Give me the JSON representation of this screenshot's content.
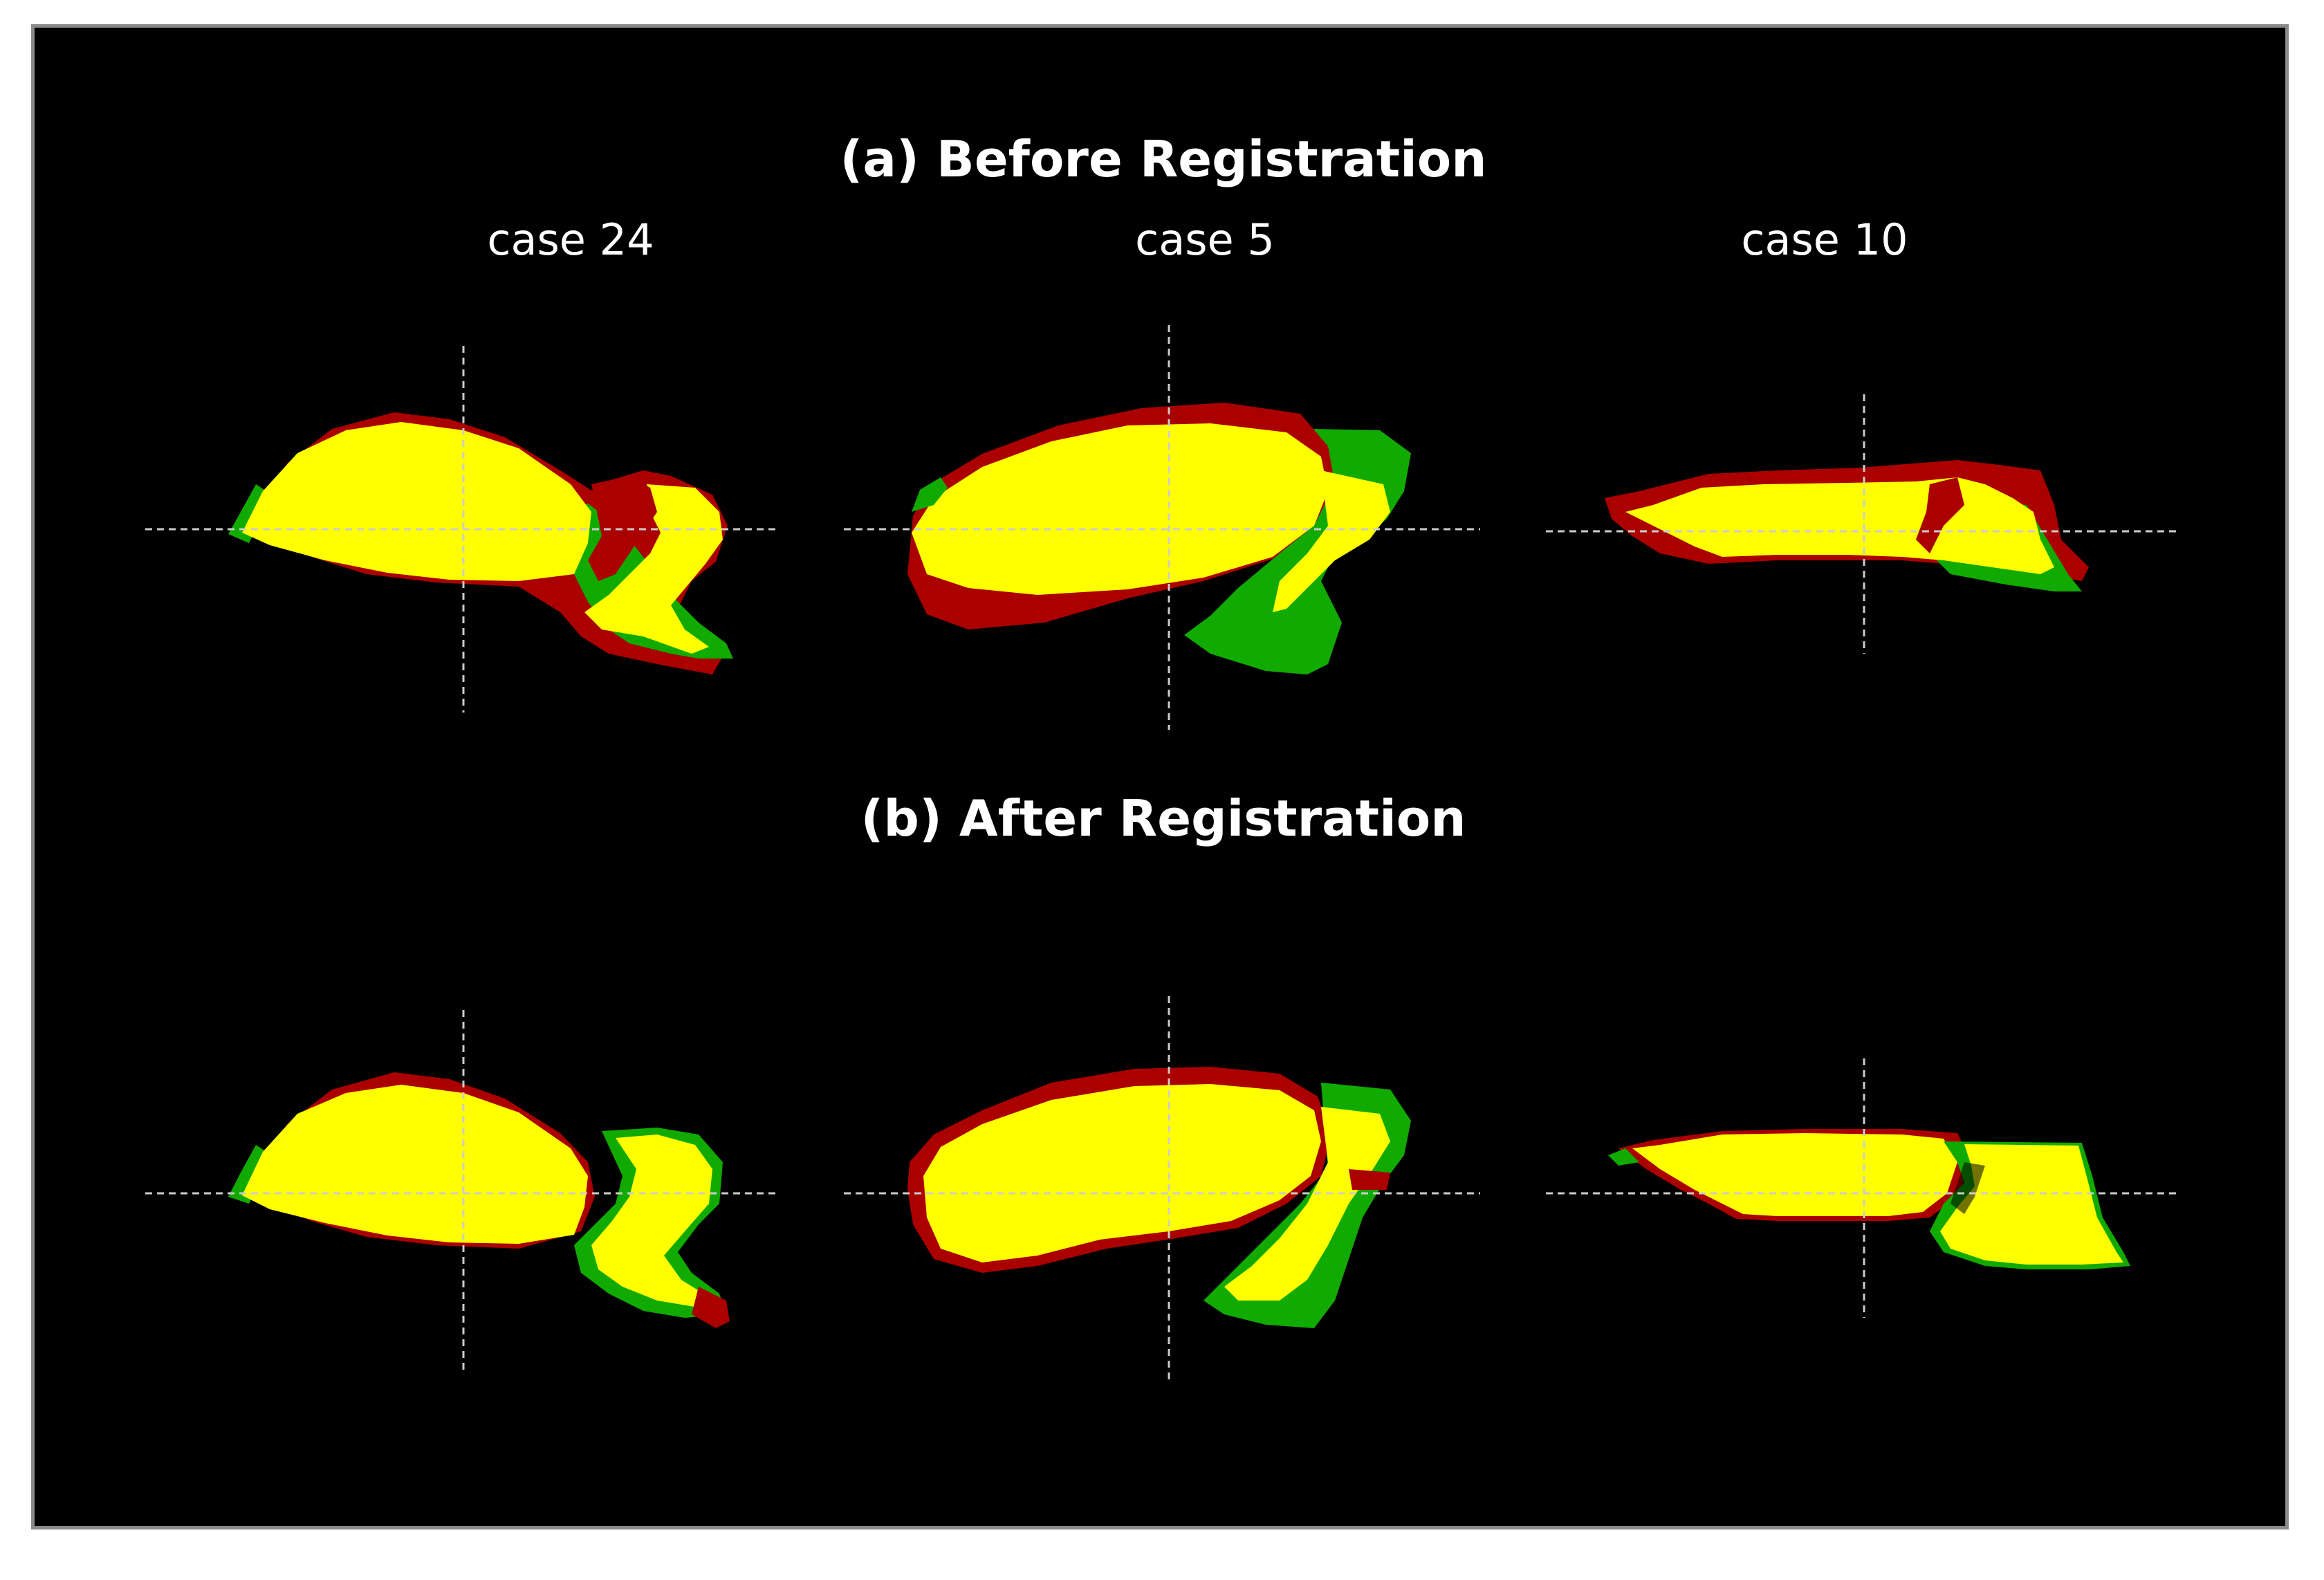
{
  "panels": {
    "before": {
      "title": "(a) Before Registration"
    },
    "after": {
      "title": "(b) After Registration"
    }
  },
  "cases": [
    "case 24",
    "case 5",
    "case 10"
  ],
  "colors": {
    "background": "#000000",
    "overlap": "#ffff00",
    "red_only": "#aa0000",
    "green_only": "#11aa00",
    "crosshair": "#cccccc",
    "frame_border": "#8a8a8a"
  }
}
